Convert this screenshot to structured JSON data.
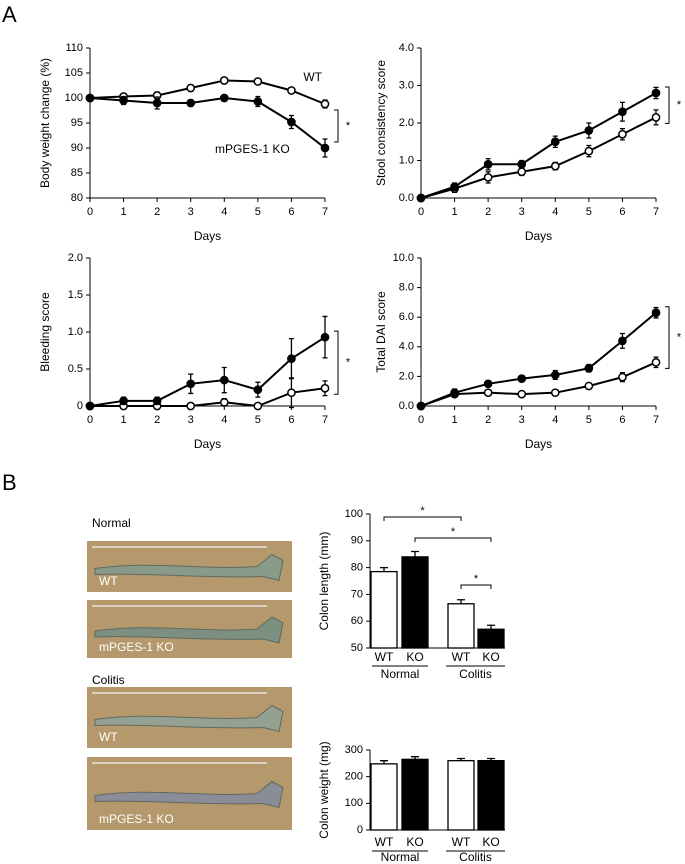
{
  "panel_labels": [
    "A",
    "B"
  ],
  "chart_data": [
    {
      "type": "line",
      "ylabel": "Body weight change (%)",
      "xlabel": "Days",
      "x": [
        0,
        1,
        2,
        3,
        4,
        5,
        6,
        7
      ],
      "xlim": [
        0,
        7
      ],
      "xticks": [
        0,
        1,
        2,
        3,
        4,
        5,
        6,
        7
      ],
      "ylim": [
        80,
        110
      ],
      "yticks": [
        80,
        85,
        90,
        95,
        100,
        105,
        110
      ],
      "series": [
        {
          "name": "WT",
          "color": "#ffffff",
          "values": [
            100,
            100.3,
            100.5,
            102,
            103.5,
            103.3,
            101.5,
            98.8
          ],
          "errors": [
            0.4,
            0.5,
            0.7,
            0.5,
            0.6,
            0.5,
            0.5,
            0.8
          ]
        },
        {
          "name": "mPGES-1 KO",
          "color": "#000000",
          "values": [
            100,
            99.5,
            99,
            99,
            100,
            99.3,
            95.2,
            90
          ],
          "errors": [
            0.4,
            0.8,
            1.2,
            0.6,
            0.5,
            1,
            1.3,
            1.8
          ]
        }
      ],
      "annotations": [
        "*"
      ]
    },
    {
      "type": "line",
      "ylabel": "Stool consistency score",
      "xlabel": "Days",
      "x": [
        0,
        1,
        2,
        3,
        4,
        5,
        6,
        7
      ],
      "xlim": [
        0,
        7
      ],
      "xticks": [
        0,
        1,
        2,
        3,
        4,
        5,
        6,
        7
      ],
      "ylim": [
        0,
        4
      ],
      "yticks": [
        {
          "value": 0,
          "label": "0.0"
        },
        {
          "value": 1,
          "label": "1.0"
        },
        {
          "value": 2,
          "label": "2.0"
        },
        {
          "value": 3,
          "label": "3.0"
        },
        {
          "value": 4,
          "label": "4.0"
        }
      ],
      "series": [
        {
          "color": "#ffffff",
          "values": [
            0,
            0.25,
            0.55,
            0.7,
            0.85,
            1.25,
            1.7,
            2.15
          ],
          "errors": [
            0.05,
            0.1,
            0.15,
            0.1,
            0.1,
            0.15,
            0.15,
            0.2
          ]
        },
        {
          "color": "#000000",
          "values": [
            0,
            0.3,
            0.9,
            0.9,
            1.5,
            1.8,
            2.3,
            2.8
          ],
          "errors": [
            0.05,
            0.1,
            0.15,
            0.1,
            0.15,
            0.2,
            0.25,
            0.15
          ]
        }
      ],
      "annotations": [
        "*"
      ]
    },
    {
      "type": "line",
      "ylabel": "Bleeding score",
      "xlabel": "Days",
      "x": [
        0,
        1,
        2,
        3,
        4,
        5,
        6,
        7
      ],
      "xlim": [
        0,
        7
      ],
      "xticks": [
        0,
        1,
        2,
        3,
        4,
        5,
        6,
        7
      ],
      "ylim": [
        0,
        2
      ],
      "yticks": [
        0,
        0.5,
        {
          "value": 1,
          "label": "1.0"
        },
        1.5,
        {
          "value": 2,
          "label": "2.0"
        }
      ],
      "series": [
        {
          "color": "#ffffff",
          "values": [
            0,
            0,
            0,
            0,
            0.05,
            0,
            0.18,
            0.24
          ],
          "errors": [
            0,
            0,
            0,
            0,
            0.05,
            0,
            0.2,
            0.1
          ]
        },
        {
          "color": "#000000",
          "values": [
            0,
            0.07,
            0.07,
            0.3,
            0.35,
            0.22,
            0.64,
            0.93
          ],
          "errors": [
            0,
            0.05,
            0.05,
            0.13,
            0.17,
            0.1,
            0.27,
            0.28
          ]
        }
      ],
      "annotations": [
        "*"
      ]
    },
    {
      "type": "line",
      "ylabel": "Total DAI score",
      "xlabel": "Days",
      "x": [
        0,
        1,
        2,
        3,
        4,
        5,
        6,
        7
      ],
      "xlim": [
        0,
        7
      ],
      "xticks": [
        0,
        1,
        2,
        3,
        4,
        5,
        6,
        7
      ],
      "ylim": [
        0,
        10
      ],
      "yticks": [
        {
          "value": 0,
          "label": "0.0"
        },
        {
          "value": 2,
          "label": "2.0"
        },
        {
          "value": 4,
          "label": "4.0"
        },
        {
          "value": 6,
          "label": "6.0"
        },
        {
          "value": 8,
          "label": "8.0"
        },
        {
          "value": 10,
          "label": "10.0"
        }
      ],
      "series": [
        {
          "color": "#ffffff",
          "values": [
            0,
            0.8,
            0.9,
            0.8,
            0.9,
            1.35,
            1.95,
            2.95
          ],
          "errors": [
            0.05,
            0.15,
            0.2,
            0.1,
            0.1,
            0.15,
            0.3,
            0.35
          ]
        },
        {
          "color": "#000000",
          "values": [
            0,
            0.9,
            1.5,
            1.85,
            2.1,
            2.55,
            4.4,
            6.3
          ],
          "errors": [
            0.1,
            0.25,
            0.2,
            0.2,
            0.3,
            0.25,
            0.5,
            0.35
          ]
        }
      ],
      "annotations": [
        "*"
      ]
    },
    {
      "type": "bar",
      "ylabel": "Colon length (mm)",
      "categories": [
        "WT",
        "KO",
        "WT",
        "KO"
      ],
      "groups": [
        "Normal",
        "Colitis"
      ],
      "values": [
        78.5,
        84,
        66.5,
        57
      ],
      "errors": [
        1.5,
        2,
        1.5,
        1.5
      ],
      "colors": [
        "#ffffff",
        "#000000",
        "#ffffff",
        "#000000"
      ],
      "ylim": [
        50,
        100
      ],
      "yticks": [
        50,
        60,
        70,
        80,
        90,
        100
      ],
      "annotations": [
        "*",
        "*",
        "*"
      ]
    },
    {
      "type": "bar",
      "ylabel": "Colon weight (mg)",
      "categories": [
        "WT",
        "KO",
        "WT",
        "KO"
      ],
      "groups": [
        "Normal",
        "Colitis"
      ],
      "values": [
        248,
        265,
        260,
        260
      ],
      "errors": [
        12,
        10,
        8,
        8
      ],
      "colors": [
        "#ffffff",
        "#000000",
        "#ffffff",
        "#000000"
      ],
      "ylim": [
        0,
        300
      ],
      "yticks": [
        0,
        100,
        200,
        300
      ]
    }
  ],
  "photos": [
    {
      "title": "Normal",
      "images": [
        "WT",
        "mPGES-1 KO"
      ]
    },
    {
      "title": "Colitis",
      "images": [
        "WT",
        "mPGES-1 KO"
      ]
    }
  ]
}
